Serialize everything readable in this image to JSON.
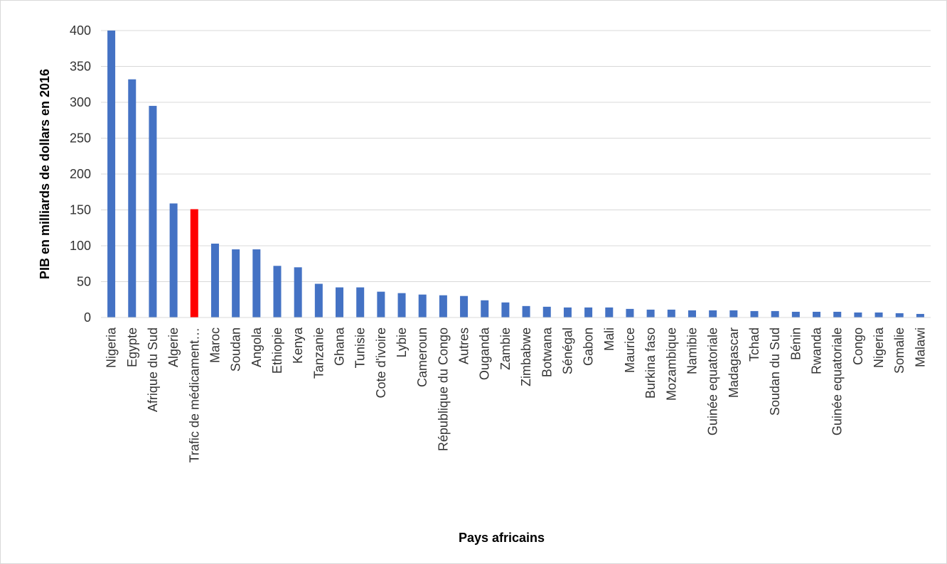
{
  "chart_data": {
    "type": "bar",
    "title": "",
    "xlabel": "Pays africains",
    "ylabel": "PIB en milliards de dollars en 2016",
    "ylim": [
      0,
      400
    ],
    "yticks": [
      0,
      50,
      100,
      150,
      200,
      250,
      300,
      350,
      400
    ],
    "grid": true,
    "legend": "none",
    "colors": {
      "default": "#4472C4",
      "highlight": "#FF0000"
    },
    "highlight_index": 4,
    "categories": [
      "Nigeria",
      "Egypte",
      "Afrique du Sud",
      "Algerie",
      "Trafic de médicament…",
      "Maroc",
      "Soudan",
      "Angola",
      "Ethiopie",
      "Kenya",
      "Tanzanie",
      "Ghana",
      "Tunisie",
      "Cote d'ivoire",
      "Lybie",
      "Cameroun",
      "République du Congo",
      "Autres",
      "Ouganda",
      "Zambie",
      "Zimbabwe",
      "Botwana",
      "Sénégal",
      "Gabon",
      "Mali",
      "Maurice",
      "Burkina faso",
      "Mozambique",
      "Namibie",
      "Guinée equatoriale",
      "Madagascar",
      "Tchad",
      "Soudan du Sud",
      "Bénin",
      "Rwanda",
      "Guinée equatoriale",
      "Congo",
      "Nigeria",
      "Somalie",
      "Malawi"
    ],
    "values": [
      400,
      332,
      295,
      159,
      151,
      103,
      95,
      95,
      72,
      70,
      47,
      42,
      42,
      36,
      34,
      32,
      31,
      30,
      24,
      21,
      16,
      15,
      14,
      14,
      14,
      12,
      11,
      11,
      10,
      10,
      10,
      9,
      9,
      8,
      8,
      8,
      7,
      7,
      6,
      5
    ]
  }
}
